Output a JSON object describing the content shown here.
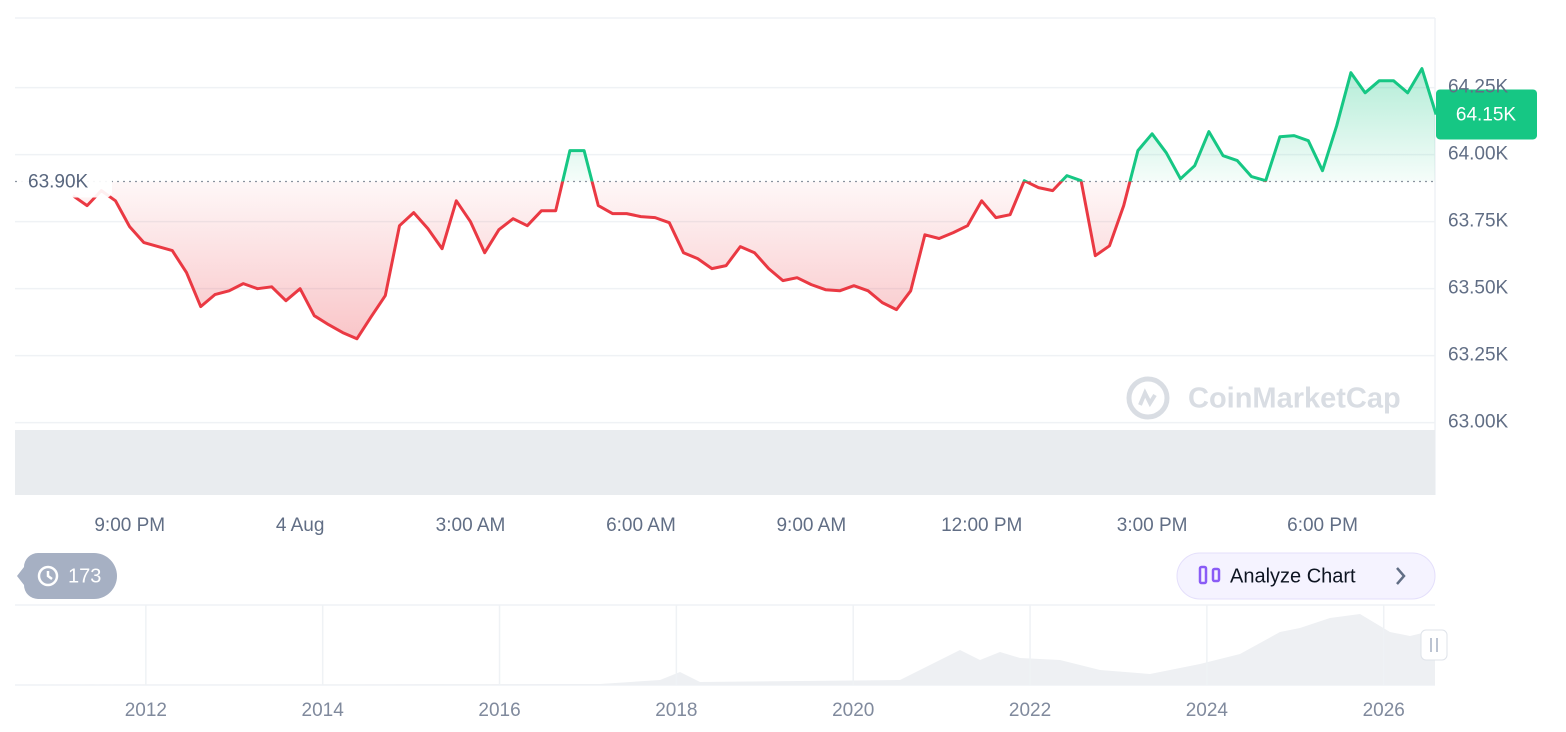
{
  "chart_data": {
    "type": "line",
    "x": [
      0,
      0.25,
      0.5,
      0.75,
      1,
      1.25,
      1.5,
      1.75,
      2,
      2.25,
      2.5,
      2.75,
      3,
      3.25,
      3.5,
      3.75,
      4,
      4.25,
      4.5,
      4.75,
      5,
      5.25,
      5.5,
      5.75,
      6,
      6.25,
      6.5,
      6.75,
      7,
      7.25,
      7.5,
      7.75,
      8,
      8.25,
      8.5,
      8.75,
      9,
      9.25,
      9.5,
      9.75,
      10,
      10.25,
      10.5,
      10.75,
      11,
      11.25,
      11.5,
      11.75,
      12,
      12.25,
      12.5,
      12.75,
      13,
      13.25,
      13.5,
      13.75,
      14,
      14.25,
      14.5,
      14.75,
      15,
      15.25,
      15.5,
      15.75,
      16,
      16.25,
      16.5,
      16.75,
      17,
      17.25,
      17.5,
      17.75,
      18,
      18.25,
      18.5,
      18.75,
      19,
      19.25,
      19.5,
      19.75,
      20,
      20.25,
      20.5,
      20.75,
      21,
      21.25,
      21.5,
      21.75,
      22,
      22.25,
      22.5,
      22.75,
      23,
      23.25,
      23.5,
      23.75,
      24
    ],
    "values": [
      63847,
      63810,
      63866,
      63828,
      63731,
      63672,
      63657,
      63642,
      63560,
      63433,
      63478,
      63492,
      63519,
      63500,
      63507,
      63455,
      63500,
      63399,
      63366,
      63336,
      63313,
      63395,
      63474,
      63735,
      63784,
      63724,
      63649,
      63828,
      63750,
      63634,
      63720,
      63761,
      63735,
      63791,
      63791,
      64015,
      64015,
      63810,
      63780,
      63780,
      63769,
      63765,
      63746,
      63634,
      63612,
      63575,
      63586,
      63657,
      63634,
      63575,
      63530,
      63541,
      63515,
      63496,
      63492,
      63511,
      63492,
      63448,
      63422,
      63492,
      63701,
      63687,
      63709,
      63735,
      63828,
      63765,
      63776,
      63903,
      63877,
      63866,
      63922,
      63903,
      63623,
      63660,
      63810,
      64015,
      64078,
      64007,
      63910,
      63959,
      64086,
      63996,
      63978,
      63918,
      63903,
      64067,
      64071,
      64052,
      63940,
      64108,
      64306,
      64231,
      64276,
      64276,
      64231,
      64321,
      64150
    ],
    "xlim": [
      -1.02,
      23.98
    ],
    "xticks": [
      {
        "value": 1,
        "label": "9:00 PM"
      },
      {
        "value": 4,
        "label": "4 Aug"
      },
      {
        "value": 7,
        "label": "3:00 AM"
      },
      {
        "value": 10,
        "label": "6:00 AM"
      },
      {
        "value": 13,
        "label": "9:00 AM"
      },
      {
        "value": 16,
        "label": "12:00 PM"
      },
      {
        "value": 19,
        "label": "3:00 PM"
      },
      {
        "value": 22,
        "label": "6:00 PM"
      }
    ],
    "ylim": [
      62730,
      64510
    ],
    "yticks": [
      {
        "value": 63000,
        "label": "63.00K"
      },
      {
        "value": 63250,
        "label": "63.25K"
      },
      {
        "value": 63500,
        "label": "63.50K"
      },
      {
        "value": 63750,
        "label": "63.75K"
      },
      {
        "value": 64000,
        "label": "64.00K"
      },
      {
        "value": 64250,
        "label": "64.25K"
      }
    ],
    "grid": true,
    "baseline": {
      "value": 63900,
      "label": "63.90K"
    },
    "last_price": {
      "value": 64150,
      "label": "64.15K"
    },
    "up_color": "#16c784",
    "down_color": "#ea3943",
    "watermark": "CoinMarketCap"
  },
  "controls": {
    "history": 173,
    "analyze": "Analyze Chart"
  },
  "navigator": {
    "xlim": [
      2010.52,
      2026.58
    ],
    "xticks": [
      2012,
      2014,
      2016,
      2018,
      2020,
      2022,
      2024,
      2026
    ]
  }
}
